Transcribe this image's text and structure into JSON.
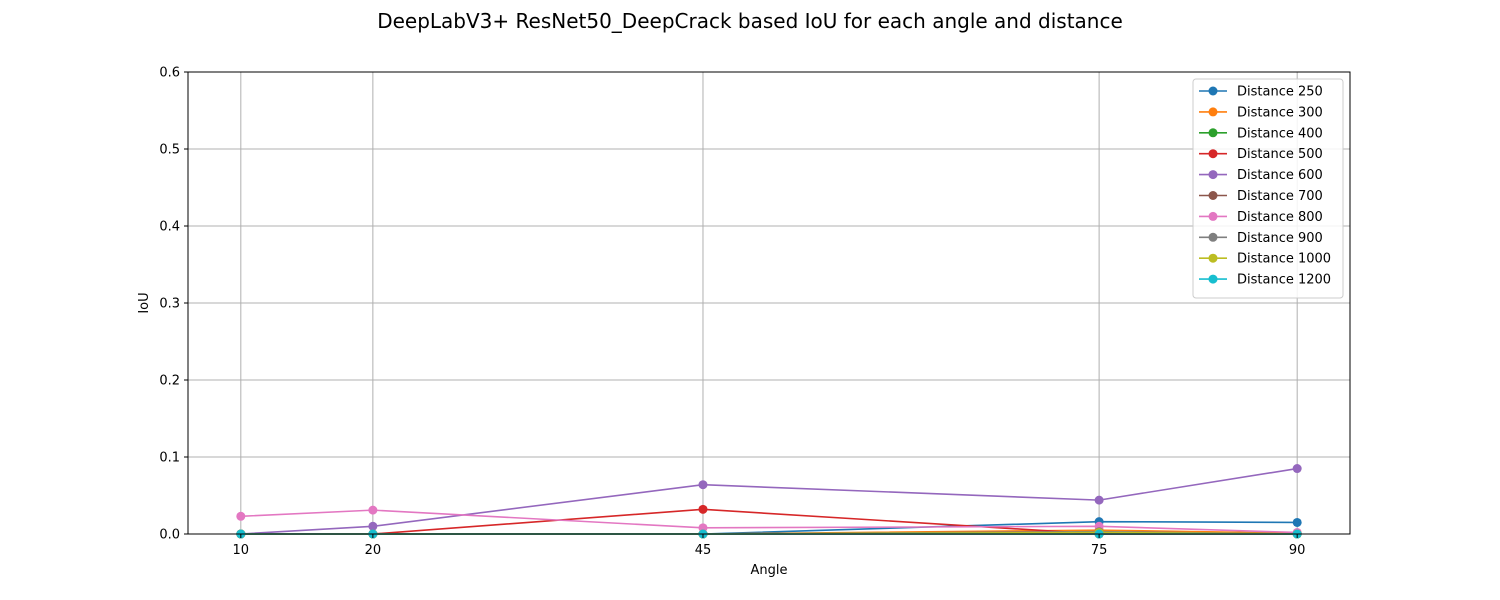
{
  "chart_data": {
    "type": "line",
    "title": "DeepLabV3+ ResNet50_DeepCrack based IoU for each angle and distance",
    "xlabel": "Angle",
    "ylabel": "IoU",
    "x": [
      10,
      20,
      45,
      75,
      90
    ],
    "x_ticks": [
      "10",
      "20",
      "45",
      "75",
      "90"
    ],
    "xlim": [
      6,
      94
    ],
    "ylim": [
      0,
      0.6
    ],
    "y_ticks": [
      "0.0",
      "0.1",
      "0.2",
      "0.3",
      "0.4",
      "0.5",
      "0.6"
    ],
    "grid": true,
    "legend_position": "top-right",
    "series": [
      {
        "name": "Distance 250",
        "color": "#1f77b4",
        "values": [
          0.0,
          0.0,
          0.0,
          0.016,
          0.015
        ]
      },
      {
        "name": "Distance 300",
        "color": "#ff7f0e",
        "values": [
          0.0,
          0.0,
          0.0,
          0.005,
          0.001
        ]
      },
      {
        "name": "Distance 400",
        "color": "#2ca02c",
        "values": [
          0.0,
          0.0,
          0.0,
          0.0,
          0.0
        ]
      },
      {
        "name": "Distance 500",
        "color": "#d62728",
        "values": [
          0.0,
          0.0,
          0.032,
          0.0,
          0.0
        ]
      },
      {
        "name": "Distance 600",
        "color": "#9467bd",
        "values": [
          0.0,
          0.01,
          0.064,
          0.044,
          0.085
        ]
      },
      {
        "name": "Distance 700",
        "color": "#8c564b",
        "values": [
          0.0,
          0.0,
          0.0,
          0.0,
          0.0
        ]
      },
      {
        "name": "Distance 800",
        "color": "#e377c2",
        "values": [
          0.023,
          0.031,
          0.008,
          0.01,
          0.002
        ]
      },
      {
        "name": "Distance 900",
        "color": "#7f7f7f",
        "values": [
          0.0,
          0.0,
          0.0,
          0.003,
          0.0
        ]
      },
      {
        "name": "Distance 1000",
        "color": "#bcbd22",
        "values": [
          0.0,
          0.0,
          0.0,
          0.002,
          0.0
        ]
      },
      {
        "name": "Distance 1200",
        "color": "#17becf",
        "values": [
          0.0,
          0.0,
          0.0,
          0.0,
          0.0
        ]
      }
    ]
  }
}
